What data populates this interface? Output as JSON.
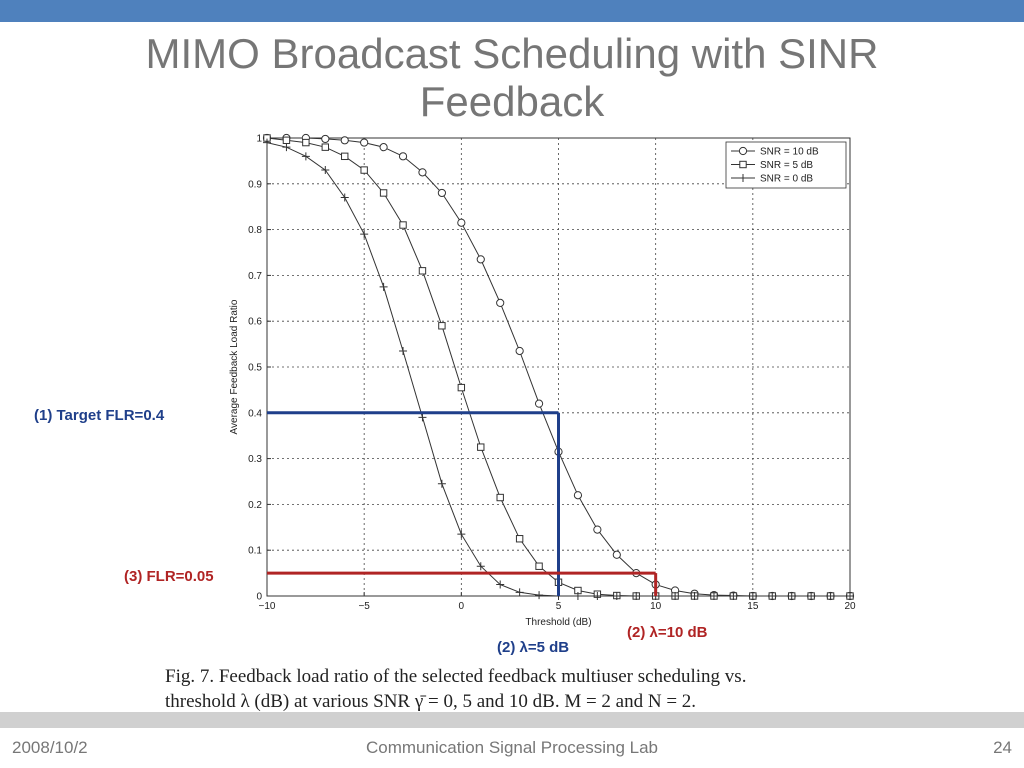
{
  "slide": {
    "title_line1": "MIMO Broadcast Scheduling with SINR",
    "title_line2": "Feedback",
    "footer_left": "2008/10/2",
    "footer_center": "Communication Signal Processing Lab",
    "footer_right": "24",
    "accent_color": "#4f81bd"
  },
  "annotations": {
    "target_flr": "(1) Target FLR=0.4",
    "flr_005": "(3) FLR=0.05",
    "lambda_10": "(2) λ=10 dB",
    "lambda_5": "(2) λ=5 dB",
    "blue_color": "#1f3f8a",
    "red_color": "#b02424"
  },
  "caption": {
    "line1": "Fig. 7.   Feedback load ratio of the selected feedback multiuser scheduling vs.",
    "line2": "threshold λ (dB) at various SNR γ̄ = 0, 5 and 10 dB. M = 2 and N = 2."
  },
  "chart_data": {
    "type": "line",
    "xlabel": "Threshold (dB)",
    "ylabel": "Average Feedback Load Ratio",
    "xlim": [
      -10,
      20
    ],
    "ylim": [
      0,
      1
    ],
    "xticks": [
      -10,
      -5,
      0,
      5,
      10,
      15,
      20
    ],
    "xtick_labels": [
      "−10",
      "−5",
      "0",
      "5",
      "10",
      "15",
      "20"
    ],
    "yticks": [
      0,
      0.1,
      0.2,
      0.3,
      0.4,
      0.5,
      0.6,
      0.7,
      0.8,
      0.9,
      1
    ],
    "ytick_labels": [
      "0",
      "0.1",
      "0.2",
      "0.3",
      "0.4",
      "0.5",
      "0.6",
      "0.7",
      "0.8",
      "0.9",
      "1"
    ],
    "grid": true,
    "legend_position": "top-right",
    "x": [
      -10,
      -9,
      -8,
      -7,
      -6,
      -5,
      -4,
      -3,
      -2,
      -1,
      0,
      1,
      2,
      3,
      4,
      5,
      6,
      7,
      8,
      9,
      10,
      11,
      12,
      13,
      14,
      15,
      16,
      17,
      18,
      19,
      20
    ],
    "series": [
      {
        "name": "SNR = 10 dB",
        "marker": "circle",
        "values": [
          1.0,
          1.0,
          1.0,
          0.998,
          0.995,
          0.99,
          0.98,
          0.96,
          0.925,
          0.88,
          0.815,
          0.735,
          0.64,
          0.535,
          0.42,
          0.315,
          0.22,
          0.145,
          0.09,
          0.05,
          0.025,
          0.012,
          0.005,
          0.002,
          0.001,
          0,
          0,
          0,
          0,
          0,
          0
        ]
      },
      {
        "name": "SNR = 5 dB",
        "marker": "square",
        "values": [
          1.0,
          0.995,
          0.99,
          0.98,
          0.96,
          0.93,
          0.88,
          0.81,
          0.71,
          0.59,
          0.455,
          0.325,
          0.215,
          0.125,
          0.065,
          0.03,
          0.012,
          0.004,
          0.001,
          0,
          0,
          0,
          0,
          0,
          0,
          0,
          0,
          0,
          0,
          0,
          0
        ]
      },
      {
        "name": "SNR = 0 dB",
        "marker": "plus",
        "values": [
          0.99,
          0.98,
          0.96,
          0.93,
          0.87,
          0.79,
          0.675,
          0.535,
          0.39,
          0.245,
          0.135,
          0.065,
          0.025,
          0.008,
          0.002,
          0,
          0,
          0,
          0,
          0,
          0,
          0,
          0,
          0,
          0,
          0,
          0,
          0,
          0,
          0,
          0
        ]
      }
    ],
    "overlays": [
      {
        "color": "blue",
        "from": [
          -10,
          0.4
        ],
        "to": [
          5,
          0.4
        ]
      },
      {
        "color": "blue",
        "from": [
          5,
          0.4
        ],
        "to": [
          5,
          0
        ]
      },
      {
        "color": "red",
        "from": [
          -10,
          0.05
        ],
        "to": [
          10,
          0.05
        ]
      },
      {
        "color": "red",
        "from": [
          10,
          0.05
        ],
        "to": [
          10,
          0
        ]
      }
    ]
  }
}
